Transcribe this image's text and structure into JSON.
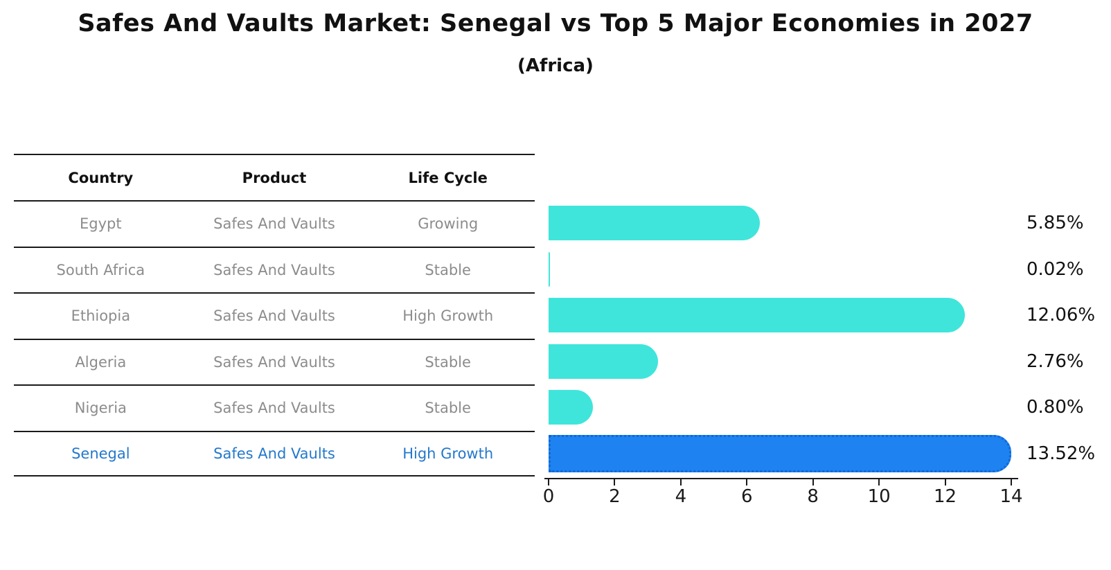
{
  "title": "Safes And Vaults Market: Senegal vs Top 5 Major Economies in 2027",
  "subtitle": "(Africa)",
  "table": {
    "headers": [
      "Country",
      "Product",
      "Life Cycle"
    ],
    "rows": [
      {
        "country": "Egypt",
        "product": "Safes And Vaults",
        "life_cycle": "Growing",
        "highlight": false
      },
      {
        "country": "South Africa",
        "product": "Safes And Vaults",
        "life_cycle": "Stable",
        "highlight": false
      },
      {
        "country": "Ethiopia",
        "product": "Safes And Vaults",
        "life_cycle": "High Growth",
        "highlight": false
      },
      {
        "country": "Algeria",
        "product": "Safes And Vaults",
        "life_cycle": "Stable",
        "highlight": false
      },
      {
        "country": "Nigeria",
        "product": "Safes And Vaults",
        "life_cycle": "Stable",
        "highlight": false
      },
      {
        "country": "Senegal",
        "product": "Safes And Vaults",
        "life_cycle": "High Growth",
        "highlight": true
      }
    ]
  },
  "chart_data": {
    "type": "bar",
    "orientation": "horizontal",
    "title": "Safes And Vaults Market: Senegal vs Top 5 Major Economies in 2027",
    "subtitle": "(Africa)",
    "categories": [
      "Egypt",
      "South Africa",
      "Ethiopia",
      "Algeria",
      "Nigeria",
      "Senegal"
    ],
    "values": [
      5.85,
      0.02,
      12.06,
      2.76,
      0.8,
      13.52
    ],
    "value_labels": [
      "5.85%",
      "0.02%",
      "12.06%",
      "2.76%",
      "0.80%",
      "13.52%"
    ],
    "highlight_index": 5,
    "x_ticks": [
      "0",
      "2",
      "4",
      "6",
      "8",
      "10",
      "12",
      "14"
    ],
    "x_tick_values": [
      0,
      2,
      4,
      6,
      8,
      10,
      12,
      14
    ],
    "xlim": [
      0,
      14
    ],
    "xlabel": "",
    "ylabel": "",
    "grid": false,
    "legend": false,
    "bar_color": "#3fe5db",
    "highlight_color": "#1e82f0",
    "highlight_border_color": "#0e68d8",
    "line_color": "#1a1a1a",
    "gray_text_color": "#8c8c8c",
    "highlight_text_color": "#2478cc"
  }
}
